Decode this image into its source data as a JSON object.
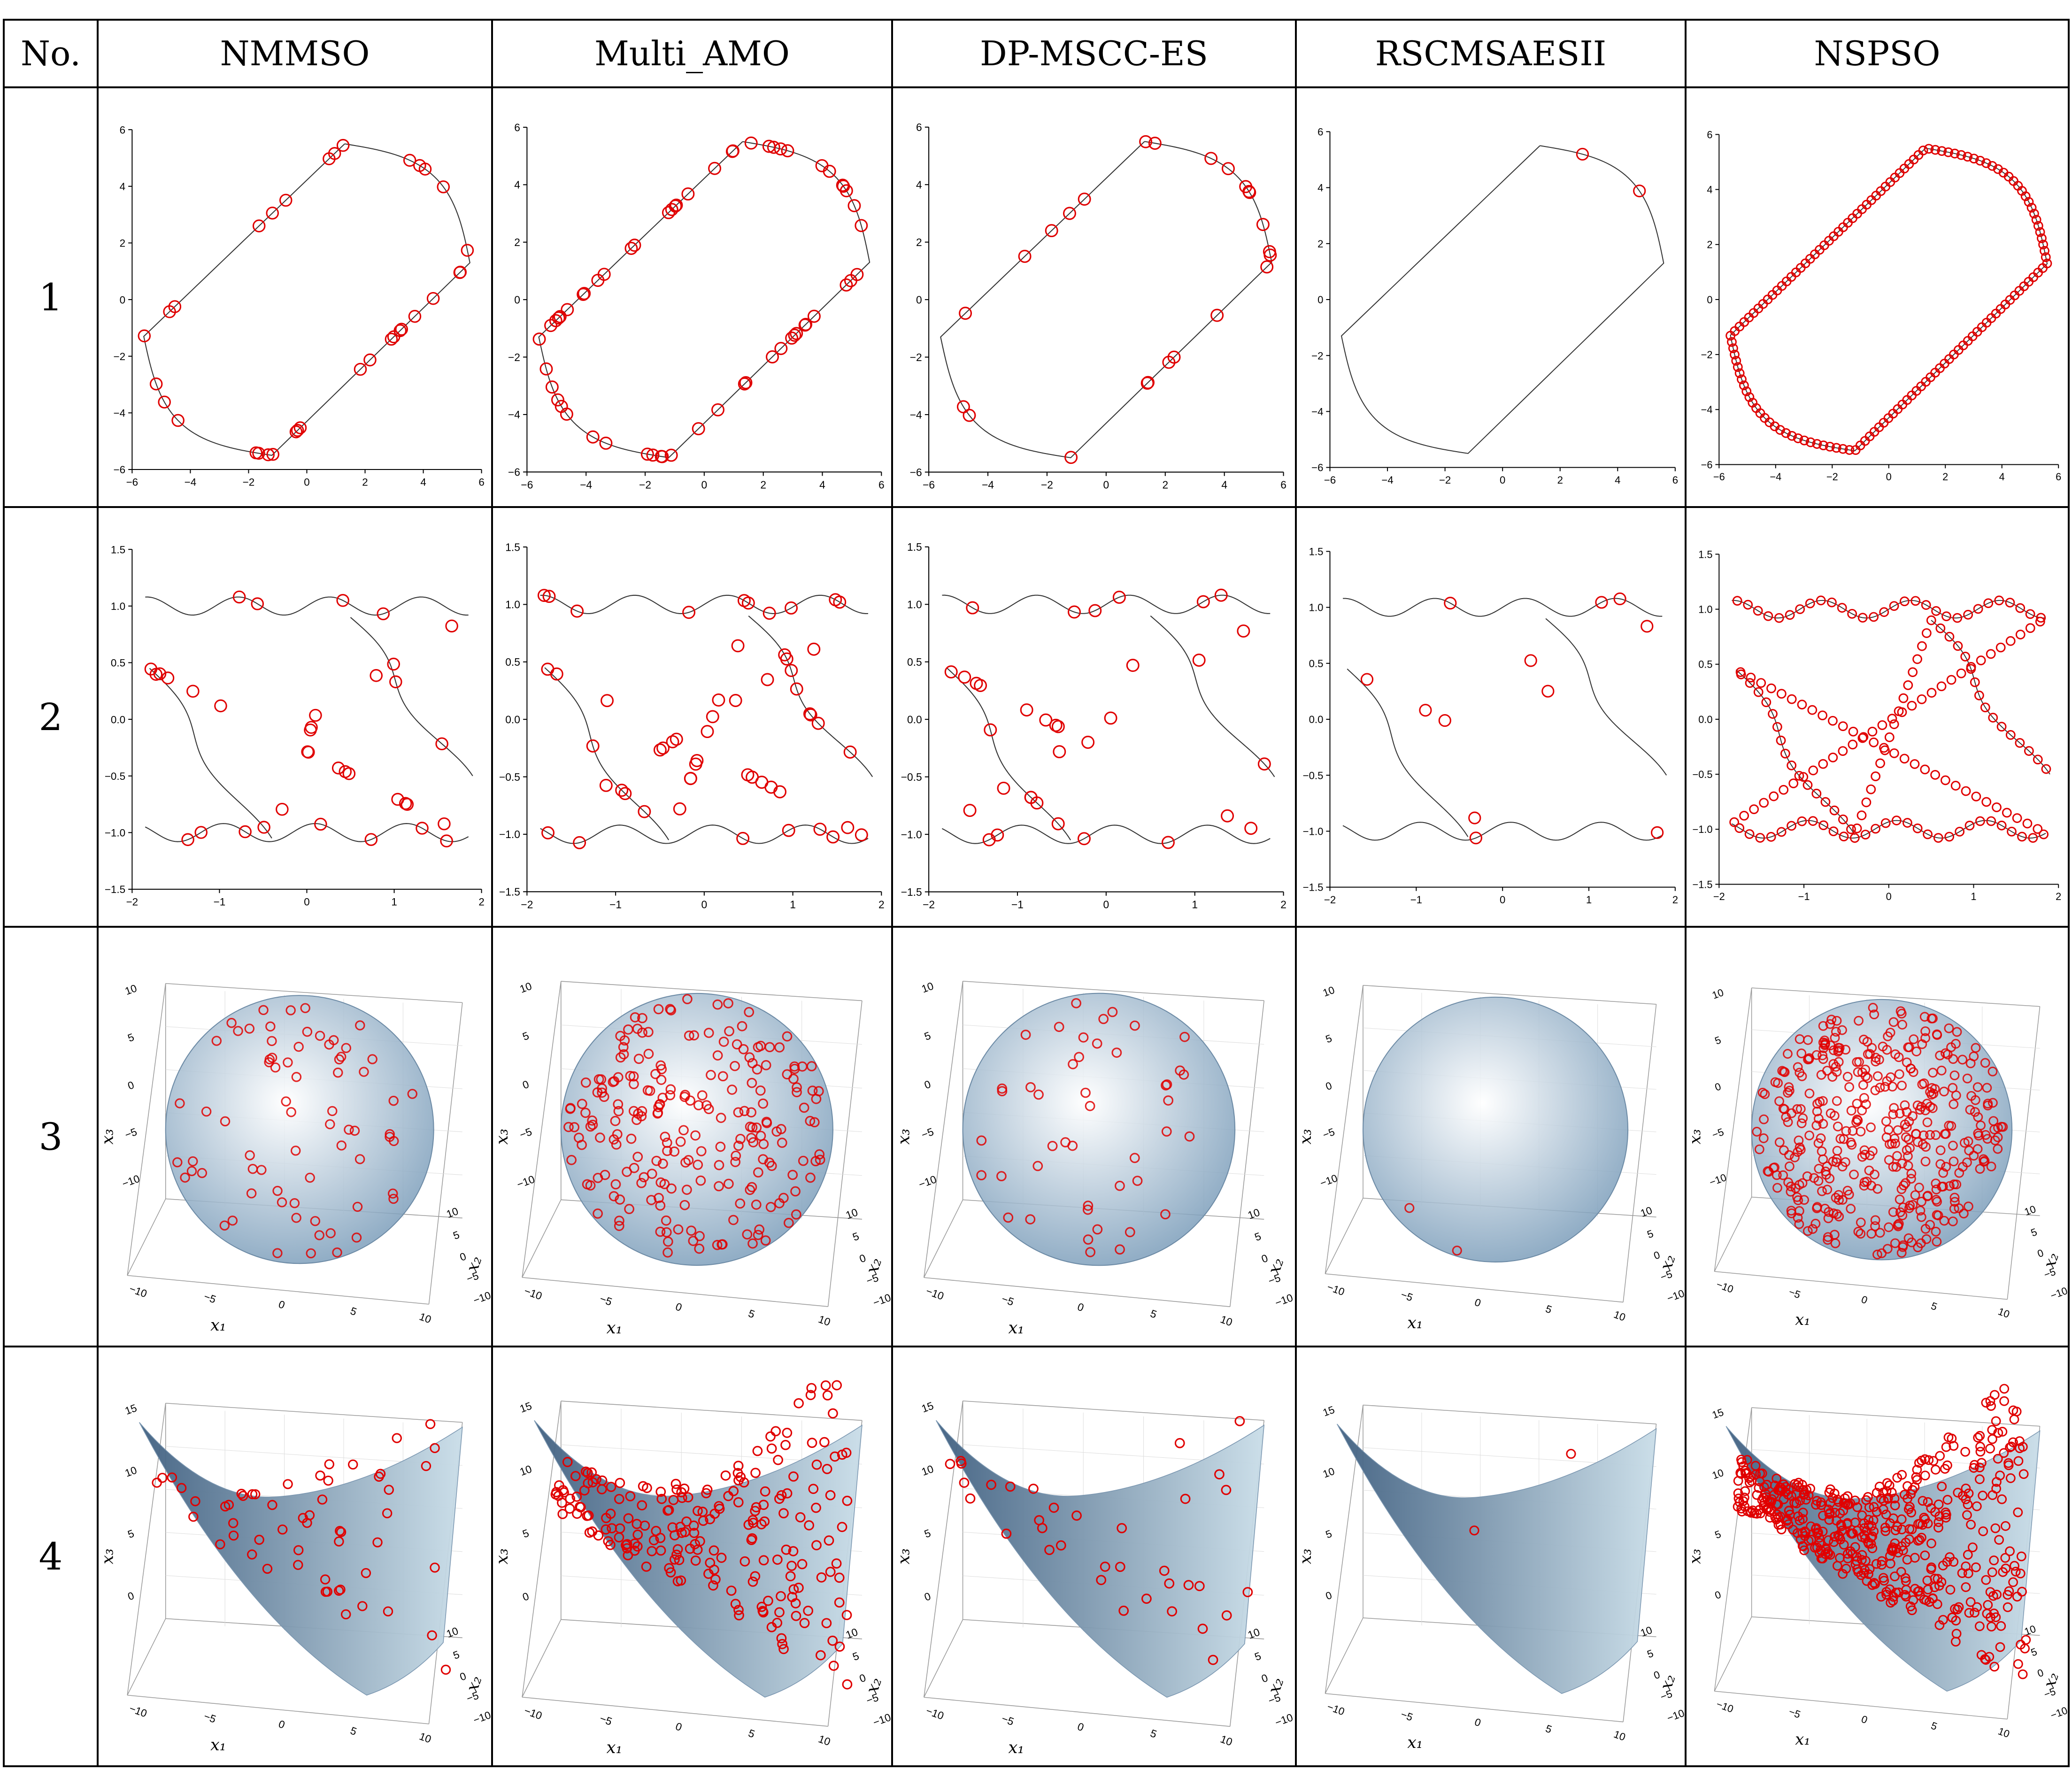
{
  "table": {
    "header": {
      "no": "No.",
      "algorithms": [
        "NMMSO",
        "Multi_AMO",
        "DP-MSCC-ES",
        "RSCMSAESII",
        "NSPSO"
      ]
    },
    "rows": [
      {
        "no": "1",
        "kind": "curve-2d-rhombus"
      },
      {
        "no": "2",
        "kind": "curve-2d-wave"
      },
      {
        "no": "3",
        "kind": "sphere-3d"
      },
      {
        "no": "4",
        "kind": "surface-3d"
      }
    ]
  },
  "axes": {
    "row1": {
      "xticks": [
        "−6",
        "−4",
        "−2",
        "0",
        "2",
        "4",
        "6"
      ],
      "yticks": [
        "6",
        "4",
        "2",
        "0",
        "−2",
        "−4",
        "−6"
      ],
      "xlim": [
        -6,
        6
      ],
      "ylim": [
        -6,
        6
      ]
    },
    "row2": {
      "xticks": [
        "−2",
        "−1",
        "0",
        "1",
        "2"
      ],
      "yticks": [
        "1.5",
        "1.0",
        "0.5",
        "0.0",
        "−0.5",
        "−1.0",
        "−1.5"
      ],
      "xlim": [
        -2,
        2
      ],
      "ylim": [
        -1.5,
        1.5
      ]
    },
    "row3": {
      "xlabel": "x₁",
      "ylabel": "x₂",
      "zlabel": "x₃",
      "zticks": [
        "10",
        "5",
        "0",
        "−5",
        "−10"
      ],
      "xticks": [
        "−10",
        "−5",
        "0",
        "5",
        "10"
      ],
      "yticks": [
        "10",
        "5",
        "0",
        "−5",
        "−10"
      ]
    },
    "row4": {
      "xlabel": "x₁",
      "ylabel": "x₂",
      "zlabel": "x₃",
      "zticks": [
        "15",
        "10",
        "5",
        "0"
      ],
      "xticks": [
        "−10",
        "−5",
        "0",
        "5",
        "10"
      ],
      "yticks": [
        "10",
        "5",
        "0",
        "−5",
        "−10"
      ]
    }
  },
  "chart_data": [
    {
      "type": "scatter",
      "problem": 1,
      "algorithm": "NMMSO",
      "points_found": 34
    },
    {
      "type": "scatter",
      "problem": 1,
      "algorithm": "Multi_AMO",
      "points_found": 60
    },
    {
      "type": "scatter",
      "problem": 1,
      "algorithm": "DP-MSCC-ES",
      "points_found": 24
    },
    {
      "type": "scatter",
      "problem": 1,
      "algorithm": "RSCMSAESII",
      "points_found": 2
    },
    {
      "type": "scatter",
      "problem": 1,
      "algorithm": "NSPSO",
      "points_found": 140
    },
    {
      "type": "scatter",
      "problem": 2,
      "algorithm": "NMMSO",
      "points_found": 36
    },
    {
      "type": "scatter",
      "problem": 2,
      "algorithm": "Multi_AMO",
      "points_found": 55
    },
    {
      "type": "scatter",
      "problem": 2,
      "algorithm": "DP-MSCC-ES",
      "points_found": 34
    },
    {
      "type": "scatter",
      "problem": 2,
      "algorithm": "RSCMSAESII",
      "points_found": 12
    },
    {
      "type": "scatter",
      "problem": 2,
      "algorithm": "NSPSO",
      "points_found": 170
    },
    {
      "type": "scatter",
      "problem": 3,
      "algorithm": "NMMSO",
      "points_found": 70
    },
    {
      "type": "scatter",
      "problem": 3,
      "algorithm": "Multi_AMO",
      "points_found": 220
    },
    {
      "type": "scatter",
      "problem": 3,
      "algorithm": "DP-MSCC-ES",
      "points_found": 45
    },
    {
      "type": "scatter",
      "problem": 3,
      "algorithm": "RSCMSAESII",
      "points_found": 2
    },
    {
      "type": "scatter",
      "problem": 3,
      "algorithm": "NSPSO",
      "points_found": 420
    },
    {
      "type": "scatter",
      "problem": 4,
      "algorithm": "NMMSO",
      "points_found": 55
    },
    {
      "type": "scatter",
      "problem": 4,
      "algorithm": "Multi_AMO",
      "points_found": 210
    },
    {
      "type": "scatter",
      "problem": 4,
      "algorithm": "DP-MSCC-ES",
      "points_found": 35
    },
    {
      "type": "scatter",
      "problem": 4,
      "algorithm": "RSCMSAESII",
      "points_found": 2
    },
    {
      "type": "scatter",
      "problem": 4,
      "algorithm": "NSPSO",
      "points_found": 500
    }
  ],
  "colors": {
    "marker": "#e00000",
    "curve": "#333333",
    "surface_light": "#c9dde8",
    "surface_dark": "#3f5f80"
  }
}
